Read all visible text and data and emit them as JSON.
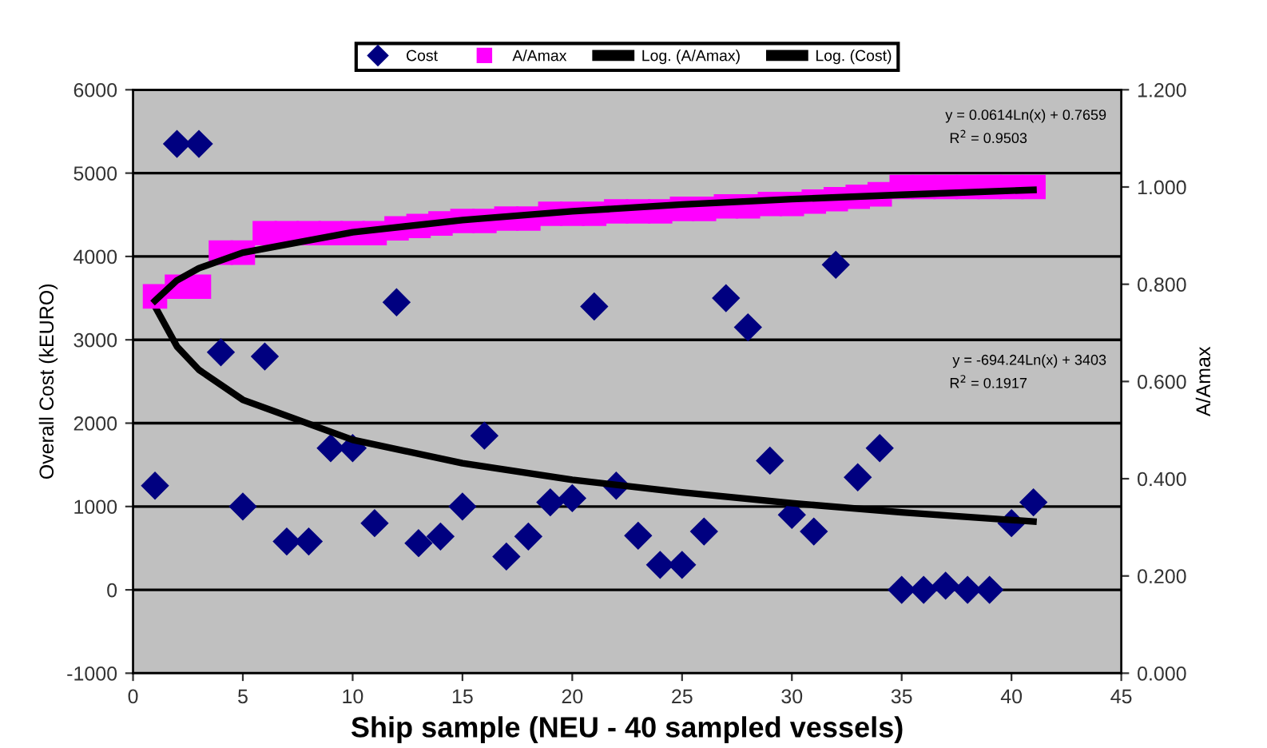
{
  "chart_data": {
    "type": "scatter",
    "xlabel": "Ship sample (NEU - 40 sampled vessels)",
    "ylabel": "Overall Cost (kEURO)",
    "y2label": "A/Amax",
    "xlim": [
      0,
      45
    ],
    "xticks": [
      0,
      5,
      10,
      15,
      20,
      25,
      30,
      35,
      40,
      45
    ],
    "ylim": [
      -1000,
      6000
    ],
    "yticks": [
      -1000,
      0,
      1000,
      2000,
      3000,
      4000,
      5000,
      6000
    ],
    "y2lim": [
      0,
      1.2
    ],
    "y2ticks": [
      {
        "value": 0,
        "label": "0.000"
      },
      {
        "value": 0.2,
        "label": "0.200"
      },
      {
        "value": 0.4,
        "label": "0.400"
      },
      {
        "value": 0.6,
        "label": "0.600"
      },
      {
        "value": 0.8,
        "label": "0.800"
      },
      {
        "value": 1.0,
        "label": "1.000"
      },
      {
        "value": 1.2,
        "label": "1.200"
      }
    ],
    "grid": "y",
    "legend": "top",
    "series": [
      {
        "name": "Cost",
        "marker": "diamond",
        "color": "#000080",
        "x": [
          1,
          2,
          3,
          4,
          5,
          6,
          7,
          8,
          9,
          10,
          11,
          12,
          13,
          14,
          15,
          16,
          17,
          18,
          19,
          20,
          21,
          22,
          23,
          24,
          25,
          26,
          27,
          28,
          29,
          30,
          31,
          32,
          33,
          34,
          35,
          36,
          37,
          38,
          39,
          40,
          41
        ],
        "values": [
          1250,
          5350,
          5350,
          2850,
          1000,
          2800,
          580,
          580,
          1700,
          1700,
          800,
          3450,
          560,
          640,
          1000,
          1850,
          400,
          640,
          1050,
          1100,
          3400,
          1250,
          650,
          300,
          300,
          700,
          3500,
          3150,
          1550,
          900,
          700,
          3900,
          1350,
          1700,
          0,
          0,
          50,
          0,
          0,
          800,
          1050
        ]
      },
      {
        "name": "A/Amax",
        "marker": "square",
        "axis": "y2",
        "color": "#ff00ff",
        "x": [
          1,
          2,
          3,
          4,
          5,
          6,
          7,
          8,
          9,
          10,
          11,
          12,
          13,
          14,
          15,
          16,
          17,
          18,
          19,
          20,
          21,
          22,
          23,
          24,
          25,
          26,
          27,
          28,
          29,
          30,
          31,
          32,
          33,
          34,
          35,
          36,
          37,
          38,
          39,
          40,
          41
        ],
        "values": [
          0.775,
          0.795,
          0.795,
          0.865,
          0.865,
          0.905,
          0.905,
          0.905,
          0.905,
          0.905,
          0.905,
          0.915,
          0.92,
          0.925,
          0.93,
          0.93,
          0.935,
          0.935,
          0.945,
          0.945,
          0.945,
          0.95,
          0.95,
          0.95,
          0.955,
          0.955,
          0.96,
          0.96,
          0.965,
          0.965,
          0.97,
          0.975,
          0.98,
          0.985,
          1.0,
          1.0,
          1.0,
          1.0,
          1.0,
          1.0,
          1.0
        ]
      },
      {
        "name": "Log. (A/Amax)",
        "type": "line",
        "axis": "y2",
        "color": "#000000",
        "x": [
          1,
          2,
          3,
          5,
          10,
          15,
          20,
          25,
          30,
          35,
          41
        ],
        "values": [
          0.766,
          0.808,
          0.833,
          0.865,
          0.907,
          0.932,
          0.95,
          0.964,
          0.975,
          0.984,
          0.994
        ]
      },
      {
        "name": "Log. (Cost)",
        "type": "line",
        "color": "#000000",
        "x": [
          1,
          2,
          3,
          5,
          10,
          15,
          20,
          25,
          30,
          35,
          41
        ],
        "values": [
          3400,
          2920,
          2640,
          2280,
          1800,
          1520,
          1320,
          1170,
          1040,
          930,
          820
        ]
      }
    ],
    "annotations": [
      "y = 0.0614Ln(x) + 0.7659",
      "R$^{2}$ = 0.9503",
      "y = -694.24Ln(x) + 3403",
      "R$^{2}$ = 0.1917"
    ]
  }
}
